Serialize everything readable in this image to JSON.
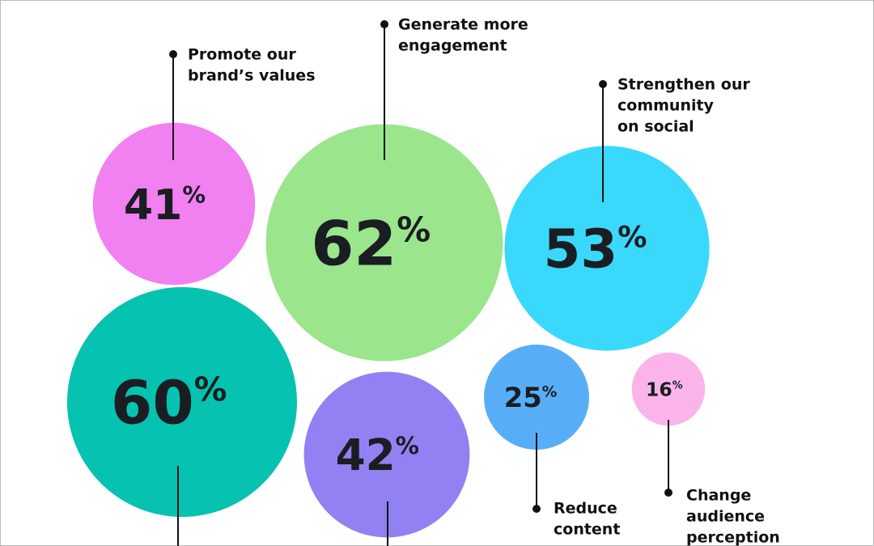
{
  "chart_data": {
    "type": "bubble",
    "categories": [
      [
        "Promote our",
        "brand’s values"
      ],
      [
        "Generate more",
        "engagement"
      ],
      [
        "Strengthen our",
        "community",
        "on social"
      ],
      null,
      null,
      [
        "Reduce",
        "content"
      ],
      [
        "Change",
        "audience",
        "perception"
      ]
    ],
    "values": [
      41,
      62,
      53,
      60,
      42,
      25,
      16
    ],
    "value_suffix": "%",
    "colors": [
      "#f180f1",
      "#9be58d",
      "#3ad9fc",
      "#06c2b1",
      "#9181f2",
      "#58aef6",
      "#fbb4ea"
    ]
  }
}
